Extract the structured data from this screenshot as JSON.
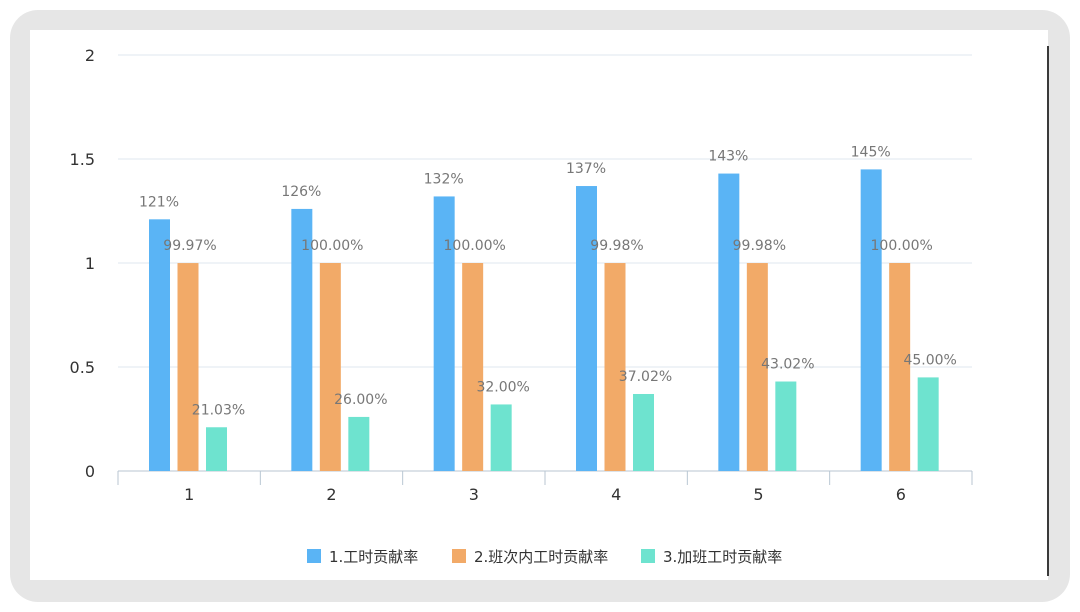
{
  "chart_data": {
    "type": "bar",
    "categories": [
      "1",
      "2",
      "3",
      "4",
      "5",
      "6"
    ],
    "ylim": [
      0,
      2
    ],
    "yticks": [
      "0",
      "0.5",
      "1",
      "1.5",
      "2"
    ],
    "grid": true,
    "legend_position": "bottom",
    "series": [
      {
        "name": "1.工时贡献率",
        "color": "#5ab4f5",
        "values": [
          1.21,
          1.26,
          1.32,
          1.37,
          1.43,
          1.45
        ],
        "labels": [
          "121%",
          "126%",
          "132%",
          "137%",
          "143%",
          "145%"
        ]
      },
      {
        "name": "2.班次内工时贡献率",
        "color": "#f2aa68",
        "values": [
          0.9997,
          1.0,
          1.0,
          0.9998,
          0.9998,
          1.0
        ],
        "labels": [
          "99.97%",
          "100.00%",
          "100.00%",
          "99.98%",
          "99.98%",
          "100.00%"
        ]
      },
      {
        "name": "3.加班工时贡献率",
        "color": "#6ee3cf",
        "values": [
          0.2103,
          0.26,
          0.32,
          0.3702,
          0.4302,
          0.45
        ],
        "labels": [
          "21.03%",
          "26.00%",
          "32.00%",
          "37.02%",
          "43.02%",
          "45.00%"
        ]
      }
    ]
  }
}
